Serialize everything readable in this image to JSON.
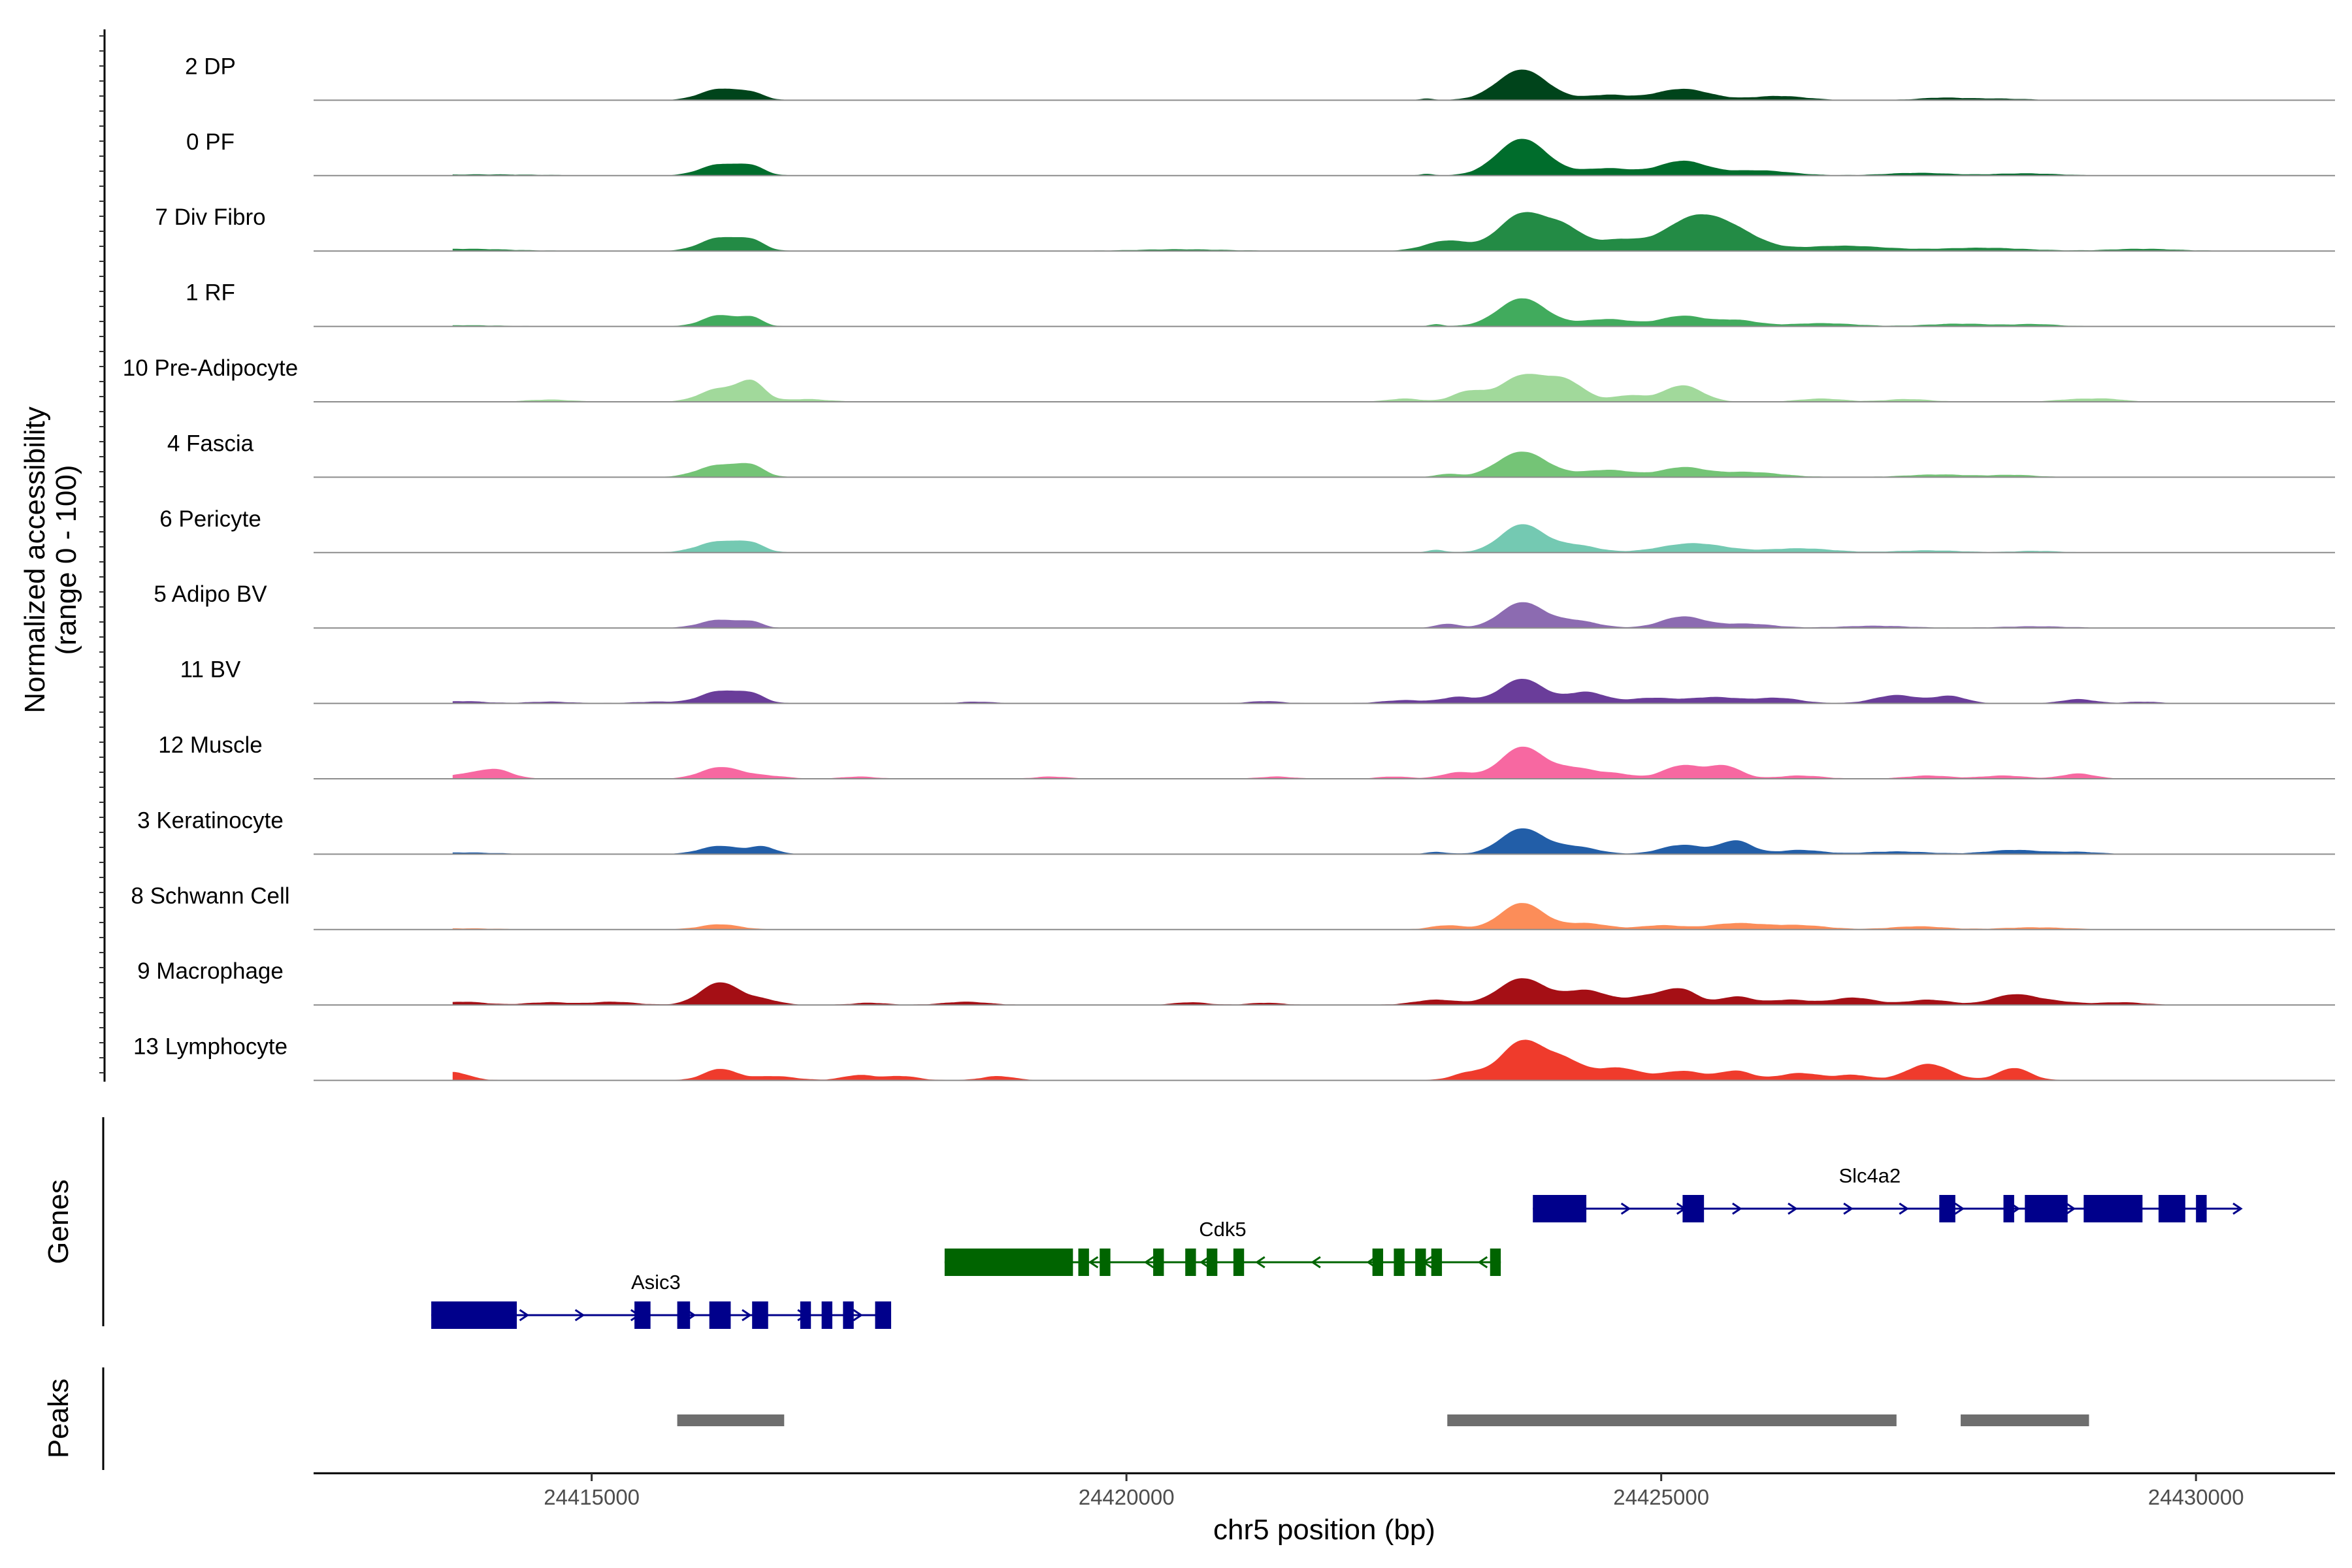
{
  "chart_data": {
    "type": "area",
    "title": "",
    "xlabel": "chr5 position (bp)",
    "ylabel": "Normalized accessibility\n(range 0 - 100)",
    "xlim": [
      24412400,
      24431300
    ],
    "ylim": [
      0,
      100
    ],
    "x_ticks": [
      24415000,
      24420000,
      24425000,
      24430000
    ],
    "x_tick_labels": [
      "24415000",
      "24420000",
      "24425000",
      "24430000"
    ],
    "series": [
      {
        "name": "2 DP",
        "color": "#00441b",
        "peaks": [
          [
            24416200,
            22,
            180
          ],
          [
            24416500,
            12,
            120
          ],
          [
            24422800,
            3,
            60
          ],
          [
            24423700,
            60,
            230
          ],
          [
            24424500,
            10,
            200
          ],
          [
            24425200,
            22,
            250
          ],
          [
            24426100,
            8,
            250
          ],
          [
            24427600,
            4,
            200
          ],
          [
            24428100,
            3,
            300
          ]
        ]
      },
      {
        "name": "0 PF",
        "color": "#006d2c",
        "peaks": [
          [
            24414000,
            2,
            500
          ],
          [
            24416200,
            22,
            180
          ],
          [
            24416500,
            16,
            120
          ],
          [
            24422800,
            3,
            60
          ],
          [
            24423700,
            72,
            230
          ],
          [
            24424500,
            14,
            250
          ],
          [
            24425200,
            28,
            220
          ],
          [
            24425900,
            10,
            300
          ],
          [
            24427400,
            5,
            300
          ],
          [
            24428400,
            4,
            300
          ]
        ]
      },
      {
        "name": "7 Div Fibro",
        "color": "#238b45",
        "peaks": [
          [
            24413800,
            4,
            400
          ],
          [
            24416200,
            26,
            180
          ],
          [
            24416500,
            18,
            120
          ],
          [
            24420500,
            3,
            400
          ],
          [
            24423000,
            20,
            200
          ],
          [
            24423700,
            72,
            220
          ],
          [
            24424100,
            40,
            180
          ],
          [
            24424600,
            20,
            200
          ],
          [
            24425300,
            62,
            280
          ],
          [
            24425700,
            28,
            250
          ],
          [
            24426700,
            10,
            400
          ],
          [
            24428000,
            6,
            400
          ],
          [
            24429500,
            4,
            300
          ]
        ]
      },
      {
        "name": "1 RF",
        "color": "#41ab5d",
        "peaks": [
          [
            24413800,
            2,
            300
          ],
          [
            24416200,
            22,
            160
          ],
          [
            24416500,
            16,
            100
          ],
          [
            24422900,
            4,
            60
          ],
          [
            24423700,
            55,
            220
          ],
          [
            24424500,
            14,
            250
          ],
          [
            24425200,
            20,
            200
          ],
          [
            24425700,
            12,
            200
          ],
          [
            24426500,
            6,
            300
          ],
          [
            24427800,
            5,
            300
          ],
          [
            24428500,
            4,
            200
          ]
        ]
      },
      {
        "name": "10 Pre-Adipocyte",
        "color": "#a1d99b",
        "peaks": [
          [
            24414600,
            4,
            200
          ],
          [
            24416200,
            26,
            180
          ],
          [
            24416500,
            36,
            120
          ],
          [
            24417000,
            5,
            200
          ],
          [
            24422600,
            6,
            150
          ],
          [
            24423200,
            20,
            150
          ],
          [
            24423700,
            50,
            200
          ],
          [
            24424100,
            40,
            180
          ],
          [
            24424700,
            12,
            150
          ],
          [
            24425200,
            32,
            180
          ],
          [
            24426500,
            6,
            200
          ],
          [
            24427300,
            5,
            200
          ],
          [
            24428900,
            5,
            200
          ],
          [
            24429200,
            4,
            150
          ]
        ]
      },
      {
        "name": "4 Fascia",
        "color": "#74c476",
        "peaks": [
          [
            24416200,
            24,
            200
          ],
          [
            24416500,
            18,
            120
          ],
          [
            24423000,
            6,
            100
          ],
          [
            24423700,
            50,
            230
          ],
          [
            24424500,
            14,
            250
          ],
          [
            24425200,
            18,
            200
          ],
          [
            24425800,
            10,
            300
          ],
          [
            24427600,
            5,
            300
          ],
          [
            24428300,
            4,
            200
          ]
        ]
      },
      {
        "name": "6 Pericyte",
        "color": "#74c9b2",
        "peaks": [
          [
            24416200,
            22,
            200
          ],
          [
            24416500,
            14,
            120
          ],
          [
            24422900,
            5,
            80
          ],
          [
            24423700,
            55,
            200
          ],
          [
            24424200,
            14,
            200
          ],
          [
            24425300,
            18,
            300
          ],
          [
            24426300,
            8,
            300
          ],
          [
            24427500,
            4,
            300
          ],
          [
            24428500,
            3,
            200
          ]
        ]
      },
      {
        "name": "5 Adipo BV",
        "color": "#8c6bb1",
        "peaks": [
          [
            24416200,
            16,
            180
          ],
          [
            24416500,
            10,
            100
          ],
          [
            24423000,
            8,
            100
          ],
          [
            24423700,
            50,
            200
          ],
          [
            24424200,
            14,
            200
          ],
          [
            24425200,
            22,
            200
          ],
          [
            24425800,
            8,
            250
          ],
          [
            24427000,
            4,
            300
          ],
          [
            24428500,
            3,
            300
          ]
        ]
      },
      {
        "name": "11 BV",
        "color": "#6a3d9a",
        "peaks": [
          [
            24413800,
            4,
            200
          ],
          [
            24414600,
            3,
            200
          ],
          [
            24415600,
            3,
            200
          ],
          [
            24416200,
            24,
            180
          ],
          [
            24416500,
            16,
            120
          ],
          [
            24418600,
            3,
            150
          ],
          [
            24421300,
            4,
            150
          ],
          [
            24422600,
            6,
            200
          ],
          [
            24423100,
            12,
            150
          ],
          [
            24423700,
            48,
            200
          ],
          [
            24424300,
            22,
            180
          ],
          [
            24424900,
            10,
            200
          ],
          [
            24425500,
            12,
            250
          ],
          [
            24426100,
            10,
            200
          ],
          [
            24427200,
            16,
            200
          ],
          [
            24427700,
            14,
            150
          ],
          [
            24428900,
            8,
            150
          ],
          [
            24429500,
            3,
            150
          ]
        ]
      },
      {
        "name": "12 Muscle",
        "color": "#f768a1",
        "peaks": [
          [
            24413800,
            8,
            150
          ],
          [
            24414100,
            18,
            150
          ],
          [
            24416200,
            22,
            180
          ],
          [
            24416600,
            6,
            200
          ],
          [
            24417500,
            4,
            150
          ],
          [
            24419300,
            4,
            150
          ],
          [
            24421400,
            4,
            150
          ],
          [
            24422500,
            4,
            150
          ],
          [
            24423100,
            12,
            150
          ],
          [
            24423700,
            62,
            200
          ],
          [
            24424200,
            20,
            200
          ],
          [
            24424600,
            8,
            150
          ],
          [
            24425200,
            26,
            180
          ],
          [
            24425600,
            24,
            150
          ],
          [
            24426300,
            6,
            200
          ],
          [
            24427500,
            6,
            200
          ],
          [
            24428200,
            6,
            200
          ],
          [
            24428900,
            10,
            150
          ]
        ]
      },
      {
        "name": "3 Keratinocyte",
        "color": "#225ea8",
        "peaks": [
          [
            24413800,
            3,
            300
          ],
          [
            24416200,
            16,
            180
          ],
          [
            24416600,
            14,
            120
          ],
          [
            24422900,
            4,
            100
          ],
          [
            24423700,
            50,
            200
          ],
          [
            24424200,
            14,
            200
          ],
          [
            24425200,
            18,
            200
          ],
          [
            24425700,
            26,
            150
          ],
          [
            24426300,
            8,
            200
          ],
          [
            24427200,
            5,
            300
          ],
          [
            24428300,
            8,
            250
          ],
          [
            24428900,
            4,
            200
          ]
        ]
      },
      {
        "name": "8 Schwann Cell",
        "color": "#fc8d59",
        "peaks": [
          [
            24413800,
            2,
            300
          ],
          [
            24416200,
            10,
            180
          ],
          [
            24423000,
            8,
            150
          ],
          [
            24423700,
            52,
            200
          ],
          [
            24424300,
            12,
            200
          ],
          [
            24425000,
            8,
            200
          ],
          [
            24425700,
            12,
            250
          ],
          [
            24426300,
            8,
            250
          ],
          [
            24427400,
            6,
            250
          ],
          [
            24428500,
            4,
            300
          ]
        ]
      },
      {
        "name": "9 Macrophage",
        "color": "#a50f15",
        "peaks": [
          [
            24413800,
            6,
            200
          ],
          [
            24414600,
            5,
            200
          ],
          [
            24415200,
            6,
            200
          ],
          [
            24416200,
            44,
            180
          ],
          [
            24416600,
            10,
            150
          ],
          [
            24417600,
            4,
            150
          ],
          [
            24418500,
            6,
            200
          ],
          [
            24420600,
            5,
            150
          ],
          [
            24421300,
            4,
            150
          ],
          [
            24422900,
            10,
            200
          ],
          [
            24423700,
            52,
            220
          ],
          [
            24424300,
            28,
            200
          ],
          [
            24424900,
            18,
            200
          ],
          [
            24425200,
            26,
            150
          ],
          [
            24425700,
            16,
            150
          ],
          [
            24426200,
            10,
            200
          ],
          [
            24426800,
            14,
            200
          ],
          [
            24427500,
            10,
            200
          ],
          [
            24428300,
            20,
            200
          ],
          [
            24428700,
            6,
            200
          ],
          [
            24429300,
            5,
            200
          ]
        ]
      },
      {
        "name": "13 Lymphocyte",
        "color": "#ef3b2c",
        "peaks": [
          [
            24413700,
            16,
            150
          ],
          [
            24416200,
            22,
            150
          ],
          [
            24416700,
            8,
            200
          ],
          [
            24417500,
            10,
            150
          ],
          [
            24417900,
            8,
            150
          ],
          [
            24418800,
            8,
            150
          ],
          [
            24423200,
            14,
            150
          ],
          [
            24423700,
            76,
            200
          ],
          [
            24424100,
            36,
            180
          ],
          [
            24424600,
            24,
            200
          ],
          [
            24425200,
            18,
            200
          ],
          [
            24425700,
            18,
            150
          ],
          [
            24426300,
            14,
            200
          ],
          [
            24426800,
            10,
            150
          ],
          [
            24427500,
            32,
            200
          ],
          [
            24428300,
            24,
            150
          ]
        ]
      }
    ],
    "genes": [
      {
        "name": "Asic3",
        "color": "#00008b",
        "strand": "+",
        "start": 24413500,
        "end": 24417800,
        "label_x": 24415600,
        "exons": [
          [
            24413500,
            24414300
          ],
          [
            24415400,
            24415550
          ],
          [
            24415800,
            24415920
          ],
          [
            24416100,
            24416300
          ],
          [
            24416500,
            24416650
          ],
          [
            24416950,
            24417050
          ],
          [
            24417150,
            24417250
          ],
          [
            24417350,
            24417450
          ],
          [
            24417650,
            24417800
          ]
        ]
      },
      {
        "name": "Cdk5",
        "color": "#006400",
        "strand": "-",
        "start": 24418300,
        "end": 24423500,
        "label_x": 24420900,
        "exons": [
          [
            24418300,
            24419500
          ],
          [
            24419550,
            24419650
          ],
          [
            24419750,
            24419850
          ],
          [
            24420250,
            24420350
          ],
          [
            24420550,
            24420650
          ],
          [
            24420750,
            24420850
          ],
          [
            24421000,
            24421100
          ],
          [
            24422300,
            24422400
          ],
          [
            24422500,
            24422600
          ],
          [
            24422700,
            24422800
          ],
          [
            24422850,
            24422950
          ],
          [
            24423400,
            24423500
          ]
        ]
      },
      {
        "name": "Slc4a2",
        "color": "#00008b",
        "strand": "+",
        "start": 24423800,
        "end": 24430400,
        "label_x": 24426950,
        "exons": [
          [
            24423800,
            24424300
          ],
          [
            24425200,
            24425400
          ],
          [
            24427600,
            24427750
          ],
          [
            24428200,
            24428300
          ],
          [
            24428400,
            24428800
          ],
          [
            24428950,
            24429500
          ],
          [
            24429650,
            24429900
          ],
          [
            24430000,
            24430100
          ]
        ]
      }
    ],
    "peaks_track": [
      [
        24415800,
        24416800
      ],
      [
        24423000,
        24427200
      ],
      [
        24427800,
        24429000
      ]
    ],
    "track_titles": {
      "genes": "Genes",
      "peaks": "Peaks"
    }
  }
}
